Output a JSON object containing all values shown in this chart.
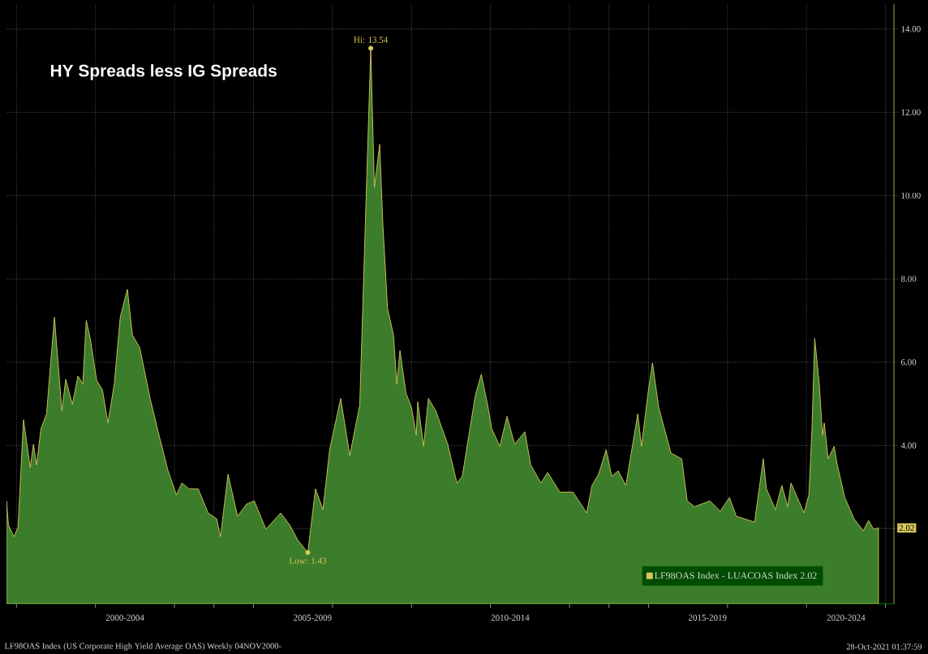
{
  "chart_data": {
    "type": "area",
    "title": "HY Spreads less IG Spreads",
    "series": [
      {
        "name": "LF98OAS Index - LUACOAS Index 2.02",
        "color": "#3b7d2b",
        "x": [
          "1999-10-01",
          "1999-10-19",
          "1999-12-09",
          "2000-01-15",
          "2000-03-06",
          "2000-05-07",
          "2000-06-06",
          "2000-07-05",
          "2000-08-14",
          "2000-10-05",
          "2000-12-17",
          "2001-02-25",
          "2001-04-01",
          "2001-06-02",
          "2001-07-23",
          "2001-09-06",
          "2001-10-08",
          "2001-11-14",
          "2002-01-12",
          "2002-03-06",
          "2002-04-26",
          "2002-06-24",
          "2002-08-18",
          "2002-10-23",
          "2002-12-09",
          "2003-02-14",
          "2003-05-21",
          "2003-08-11",
          "2003-11-03",
          "2004-01-19",
          "2004-03-09",
          "2004-05-14",
          "2004-08-07",
          "2004-11-07",
          "2005-01-26",
          "2005-03-02",
          "2005-05-11",
          "2005-08-07",
          "2005-10-28",
          "2006-01-08",
          "2006-04-26",
          "2006-09-09",
          "2006-12-02",
          "2007-02-14",
          "2007-05-18",
          "2007-07-28",
          "2007-10-05",
          "2007-12-06",
          "2008-03-17",
          "2008-06-09",
          "2008-09-09",
          "2008-12-20",
          "2009-01-23",
          "2009-03-13",
          "2009-04-12",
          "2009-05-25",
          "2009-07-19",
          "2009-08-18",
          "2009-09-17",
          "2009-11-11",
          "2010-01-01",
          "2010-02-14",
          "2010-02-28",
          "2010-04-23",
          "2010-06-06",
          "2010-08-14",
          "2010-12-02",
          "2011-02-25",
          "2011-04-15",
          "2011-05-25",
          "2011-08-14",
          "2011-10-08",
          "2011-12-06",
          "2012-01-12",
          "2012-03-27",
          "2012-06-02",
          "2012-08-11",
          "2012-11-14",
          "2013-01-08",
          "2013-04-12",
          "2013-06-13",
          "2013-10-05",
          "2014-02-03",
          "2014-06-09",
          "2014-07-28",
          "2014-09-27",
          "2014-12-06",
          "2015-01-26",
          "2015-03-27",
          "2015-06-06",
          "2015-09-24",
          "2015-10-28",
          "2016-01-01",
          "2016-02-07",
          "2016-04-05",
          "2016-07-26",
          "2016-11-03",
          "2016-12-24",
          "2017-03-02",
          "2017-07-23",
          "2017-10-26",
          "2018-01-19",
          "2018-03-24",
          "2018-09-09",
          "2018-11-28",
          "2018-12-27",
          "2019-03-20",
          "2019-05-18",
          "2019-07-12",
          "2019-08-11",
          "2019-12-09",
          "2020-01-23",
          "2020-02-21",
          "2020-03-17",
          "2020-04-28",
          "2020-05-28",
          "2020-06-13",
          "2020-07-19",
          "2020-09-13",
          "2020-10-12",
          "2020-12-20",
          "2021-03-17",
          "2021-06-09",
          "2021-07-28",
          "2021-09-13",
          "2021-10-28"
        ],
        "values": [
          2.67,
          2.09,
          1.81,
          2.03,
          4.62,
          3.47,
          4.03,
          3.53,
          4.4,
          4.76,
          7.08,
          4.83,
          5.59,
          4.99,
          5.67,
          5.48,
          7.0,
          6.57,
          5.56,
          5.34,
          4.54,
          5.48,
          7.08,
          7.75,
          6.65,
          6.35,
          5.13,
          4.25,
          3.39,
          2.81,
          3.1,
          2.96,
          2.96,
          2.38,
          2.24,
          1.81,
          3.31,
          2.3,
          2.59,
          2.67,
          1.99,
          2.38,
          2.09,
          1.73,
          1.43,
          2.96,
          2.46,
          3.9,
          5.13,
          3.76,
          4.97,
          13.54,
          10.2,
          11.23,
          9.28,
          7.29,
          6.65,
          5.48,
          6.28,
          5.26,
          4.91,
          4.25,
          5.05,
          3.98,
          5.13,
          4.83,
          4.03,
          3.1,
          3.26,
          3.9,
          5.2,
          5.71,
          4.97,
          4.41,
          3.98,
          4.7,
          4.03,
          4.33,
          3.53,
          3.1,
          3.35,
          2.88,
          2.88,
          2.38,
          3.04,
          3.31,
          3.9,
          3.26,
          3.39,
          3.04,
          4.76,
          3.98,
          5.34,
          5.98,
          4.91,
          3.82,
          3.68,
          2.67,
          2.53,
          2.67,
          2.42,
          2.75,
          2.3,
          2.16,
          3.68,
          2.96,
          2.46,
          3.04,
          2.53,
          3.1,
          2.38,
          2.81,
          4.41,
          6.57,
          5.48,
          4.25,
          4.54,
          3.68,
          3.98,
          3.53,
          2.75,
          2.24,
          1.95,
          2.2,
          1.99,
          2.02
        ]
      }
    ],
    "xlim": [
      "1999-10-01",
      "2022-03-20"
    ],
    "xticks": [
      {
        "value": "2000-01-01",
        "label": null
      },
      {
        "value": "2002-01-01",
        "label": null
      },
      {
        "value": "2002-10-01",
        "label": "2000-2004"
      },
      {
        "value": "2004-01-01",
        "label": null
      },
      {
        "value": "2005-01-01",
        "label": null
      },
      {
        "value": "2006-01-01",
        "label": null
      },
      {
        "value": "2007-07-01",
        "label": "2005-2009"
      },
      {
        "value": "2008-01-01",
        "label": null
      },
      {
        "value": "2010-01-01",
        "label": null
      },
      {
        "value": "2012-01-01",
        "label": null
      },
      {
        "value": "2012-07-01",
        "label": "2010-2014"
      },
      {
        "value": "2014-01-01",
        "label": null
      },
      {
        "value": "2015-01-01",
        "label": null
      },
      {
        "value": "2016-01-01",
        "label": null
      },
      {
        "value": "2017-07-01",
        "label": "2015-2019"
      },
      {
        "value": "2018-01-01",
        "label": null
      },
      {
        "value": "2020-01-01",
        "label": null
      },
      {
        "value": "2021-01-01",
        "label": "2020-2024"
      },
      {
        "value": "2022-01-01",
        "label": null
      }
    ],
    "ylim": [
      0.2,
      14.6
    ],
    "yticks": [
      {
        "value": 2,
        "label": null
      },
      {
        "value": 4,
        "label": "4.00"
      },
      {
        "value": 6,
        "label": "6.00"
      },
      {
        "value": 8,
        "label": "8.00"
      },
      {
        "value": 10,
        "label": "10.00"
      },
      {
        "value": 12,
        "label": "12.00"
      },
      {
        "value": 14,
        "label": "14.00"
      }
    ],
    "grid": true,
    "legend": "bottom right",
    "marker": "none",
    "line_style": "solid",
    "annotations": [
      {
        "text": "Hi: 13.54",
        "x": "2008-12-20",
        "y": 13.54
      },
      {
        "text": "Low: 1.43",
        "x": "2007-05-18",
        "y": 1.43
      },
      {
        "text": "2.02",
        "x": "2021-10-28",
        "y": 2.02
      },
      "LF98OAS Index (US Corporate High Yield Average OAS) Weekly 04NOV2000-",
      "28-Oct-2021 01:37:59"
    ]
  }
}
